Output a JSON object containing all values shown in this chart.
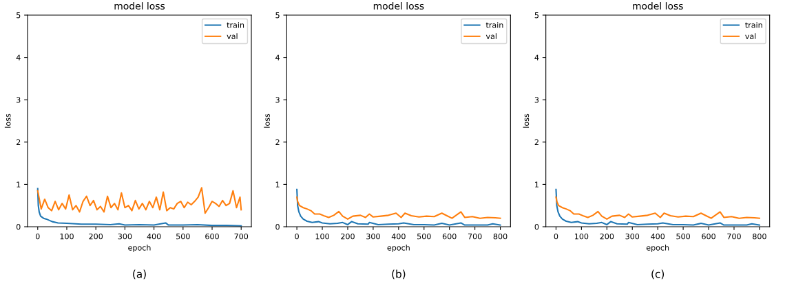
{
  "chart_data": [
    {
      "type": "line",
      "title": "model loss",
      "xlabel": "epoch",
      "ylabel": "loss",
      "xlim": [
        -35,
        735
      ],
      "xticks": [
        0,
        100,
        200,
        300,
        400,
        500,
        600,
        700
      ],
      "ylim": [
        0,
        5
      ],
      "yticks": [
        0,
        1,
        2,
        3,
        4,
        5
      ],
      "legend": "top right",
      "grid": false,
      "annotations": [
        "(a)"
      ],
      "series": [
        {
          "name": "train",
          "color": "#1f77b4",
          "x": [
            0,
            2,
            5,
            10,
            20,
            30,
            50,
            70,
            100,
            150,
            200,
            250,
            280,
            300,
            350,
            400,
            440,
            450,
            500,
            550,
            600,
            650,
            700
          ],
          "values": [
            0.9,
            0.5,
            0.35,
            0.25,
            0.2,
            0.18,
            0.12,
            0.09,
            0.08,
            0.06,
            0.06,
            0.05,
            0.07,
            0.04,
            0.05,
            0.04,
            0.09,
            0.04,
            0.04,
            0.05,
            0.03,
            0.03,
            0.02
          ]
        },
        {
          "name": "val",
          "color": "#ff7f0e",
          "x": [
            0,
            12,
            24,
            36,
            48,
            60,
            72,
            84,
            96,
            108,
            120,
            132,
            144,
            156,
            168,
            180,
            192,
            204,
            216,
            228,
            240,
            252,
            264,
            276,
            288,
            300,
            312,
            324,
            336,
            348,
            360,
            372,
            384,
            396,
            408,
            420,
            432,
            444,
            456,
            468,
            480,
            492,
            504,
            516,
            528,
            540,
            552,
            564,
            576,
            588,
            600,
            612,
            624,
            636,
            648,
            660,
            672,
            684,
            696,
            700
          ],
          "values": [
            0.85,
            0.42,
            0.65,
            0.45,
            0.38,
            0.6,
            0.4,
            0.55,
            0.42,
            0.75,
            0.4,
            0.5,
            0.35,
            0.6,
            0.72,
            0.5,
            0.62,
            0.4,
            0.48,
            0.35,
            0.72,
            0.45,
            0.55,
            0.4,
            0.8,
            0.45,
            0.5,
            0.38,
            0.62,
            0.42,
            0.55,
            0.4,
            0.6,
            0.45,
            0.7,
            0.4,
            0.82,
            0.38,
            0.45,
            0.42,
            0.55,
            0.6,
            0.45,
            0.58,
            0.52,
            0.6,
            0.7,
            0.92,
            0.32,
            0.45,
            0.6,
            0.55,
            0.48,
            0.62,
            0.5,
            0.55,
            0.85,
            0.45,
            0.7,
            0.4
          ]
        }
      ]
    },
    {
      "type": "line",
      "title": "model loss",
      "xlabel": "epoch",
      "ylabel": "loss",
      "xlim": [
        -40,
        840
      ],
      "xticks": [
        0,
        100,
        200,
        300,
        400,
        500,
        600,
        700,
        800
      ],
      "ylim": [
        0,
        5
      ],
      "yticks": [
        0,
        1,
        2,
        3,
        4,
        5
      ],
      "legend": "top right",
      "grid": false,
      "annotations": [
        "(b)"
      ],
      "series": [
        {
          "name": "train",
          "color": "#1f77b4",
          "x": [
            0,
            3,
            8,
            15,
            25,
            40,
            60,
            85,
            100,
            130,
            160,
            180,
            200,
            215,
            240,
            280,
            285,
            320,
            360,
            400,
            420,
            460,
            500,
            540,
            570,
            600,
            645,
            660,
            700,
            750,
            770,
            800
          ],
          "values": [
            0.88,
            0.5,
            0.35,
            0.25,
            0.18,
            0.13,
            0.1,
            0.12,
            0.09,
            0.07,
            0.08,
            0.1,
            0.05,
            0.12,
            0.07,
            0.06,
            0.1,
            0.05,
            0.06,
            0.07,
            0.09,
            0.05,
            0.05,
            0.04,
            0.08,
            0.04,
            0.09,
            0.04,
            0.04,
            0.04,
            0.07,
            0.04
          ]
        },
        {
          "name": "val",
          "color": "#ff7f0e",
          "x": [
            0,
            3,
            10,
            25,
            40,
            55,
            70,
            90,
            110,
            125,
            145,
            165,
            180,
            200,
            220,
            250,
            270,
            285,
            300,
            330,
            360,
            390,
            410,
            425,
            450,
            480,
            510,
            540,
            570,
            590,
            610,
            645,
            660,
            690,
            720,
            750,
            780,
            800
          ],
          "values": [
            0.7,
            0.6,
            0.5,
            0.45,
            0.42,
            0.38,
            0.3,
            0.3,
            0.25,
            0.22,
            0.27,
            0.36,
            0.25,
            0.18,
            0.25,
            0.27,
            0.22,
            0.3,
            0.23,
            0.25,
            0.27,
            0.32,
            0.22,
            0.32,
            0.26,
            0.23,
            0.25,
            0.24,
            0.32,
            0.26,
            0.2,
            0.35,
            0.22,
            0.24,
            0.2,
            0.22,
            0.21,
            0.2
          ]
        }
      ]
    },
    {
      "type": "line",
      "title": "model loss",
      "xlabel": "epoch",
      "ylabel": "loss",
      "xlim": [
        -40,
        840
      ],
      "xticks": [
        0,
        100,
        200,
        300,
        400,
        500,
        600,
        700,
        800
      ],
      "ylim": [
        0,
        5
      ],
      "yticks": [
        0,
        1,
        2,
        3,
        4,
        5
      ],
      "legend": "top right",
      "grid": false,
      "annotations": [
        "(c)"
      ],
      "series": [
        {
          "name": "train",
          "color": "#1f77b4",
          "x": [
            0,
            3,
            8,
            15,
            25,
            40,
            60,
            85,
            100,
            130,
            160,
            180,
            200,
            215,
            240,
            280,
            285,
            320,
            360,
            400,
            420,
            460,
            500,
            540,
            570,
            600,
            645,
            660,
            700,
            750,
            770,
            800
          ],
          "values": [
            0.88,
            0.5,
            0.35,
            0.25,
            0.18,
            0.13,
            0.1,
            0.12,
            0.09,
            0.07,
            0.08,
            0.1,
            0.05,
            0.12,
            0.07,
            0.06,
            0.1,
            0.05,
            0.06,
            0.07,
            0.09,
            0.05,
            0.05,
            0.04,
            0.08,
            0.04,
            0.09,
            0.04,
            0.04,
            0.04,
            0.07,
            0.04
          ]
        },
        {
          "name": "val",
          "color": "#ff7f0e",
          "x": [
            0,
            3,
            10,
            25,
            40,
            55,
            70,
            90,
            110,
            125,
            145,
            165,
            180,
            200,
            220,
            250,
            270,
            285,
            300,
            330,
            360,
            390,
            410,
            425,
            450,
            480,
            510,
            540,
            570,
            590,
            610,
            645,
            660,
            690,
            720,
            750,
            780,
            800
          ],
          "values": [
            0.7,
            0.6,
            0.5,
            0.45,
            0.42,
            0.38,
            0.3,
            0.3,
            0.25,
            0.22,
            0.27,
            0.36,
            0.25,
            0.18,
            0.25,
            0.27,
            0.22,
            0.3,
            0.23,
            0.25,
            0.27,
            0.32,
            0.22,
            0.32,
            0.26,
            0.23,
            0.25,
            0.24,
            0.32,
            0.26,
            0.2,
            0.35,
            0.22,
            0.24,
            0.2,
            0.22,
            0.21,
            0.2
          ]
        }
      ]
    }
  ]
}
